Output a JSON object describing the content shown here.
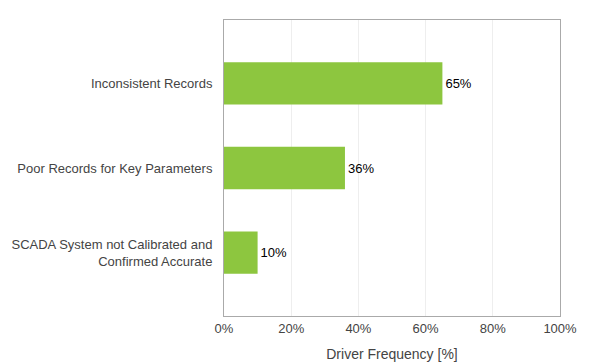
{
  "chart_data": {
    "type": "bar",
    "orientation": "horizontal",
    "xlabel": "Driver Frequency [%]",
    "categories": [
      "SCADA System not Calibrated and\nConfirmed Accurate",
      "Poor Records for Key Parameters",
      "Inconsistent Records"
    ],
    "values": [
      10,
      36,
      65
    ],
    "value_labels": [
      "10%",
      "36%",
      "65%"
    ],
    "data_labels": true,
    "color": "#8DC63F",
    "xlim": [
      0,
      100
    ],
    "xticks": [
      {
        "value": 0,
        "label": "0%"
      },
      {
        "value": 20,
        "label": "20%"
      },
      {
        "value": 40,
        "label": "40%"
      },
      {
        "value": 60,
        "label": "60%"
      },
      {
        "value": 80,
        "label": "80%"
      },
      {
        "value": 100,
        "label": "100%"
      }
    ],
    "grid": true
  }
}
